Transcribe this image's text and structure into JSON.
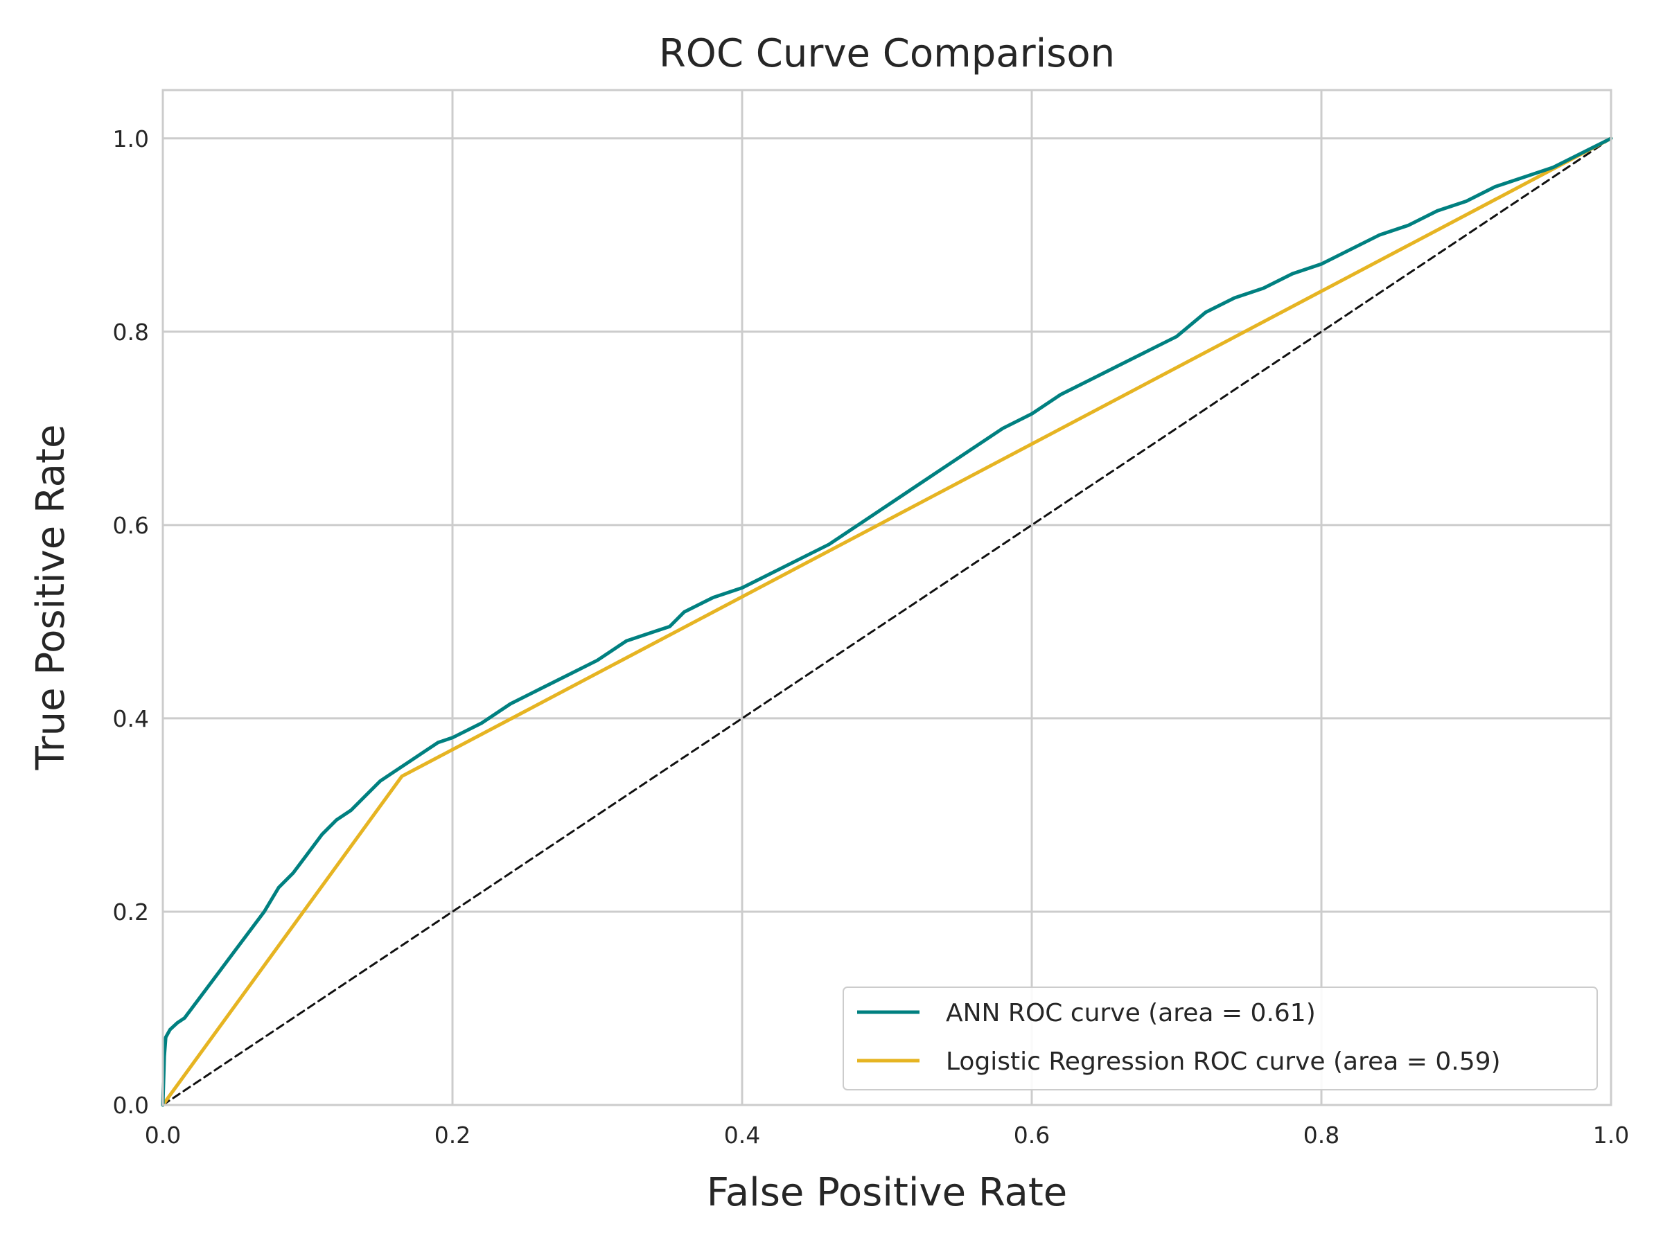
{
  "chart_data": {
    "type": "line",
    "title": "ROC Curve Comparison",
    "xlabel": "False Positive Rate",
    "ylabel": "True Positive Rate",
    "xlim": [
      0.0,
      1.0
    ],
    "ylim": [
      0.0,
      1.05
    ],
    "xticks": [
      "0.0",
      "0.2",
      "0.4",
      "0.6",
      "0.8",
      "1.0"
    ],
    "yticks": [
      "0.0",
      "0.2",
      "0.4",
      "0.6",
      "0.8",
      "1.0"
    ],
    "grid": true,
    "legend_position": "lower-right",
    "series": [
      {
        "name": "ANN ROC curve (area = 0.61)",
        "color": "#008080",
        "x": [
          0.0,
          0.001,
          0.002,
          0.005,
          0.01,
          0.015,
          0.02,
          0.03,
          0.04,
          0.05,
          0.06,
          0.07,
          0.08,
          0.09,
          0.1,
          0.11,
          0.12,
          0.13,
          0.14,
          0.15,
          0.16,
          0.17,
          0.18,
          0.19,
          0.2,
          0.22,
          0.24,
          0.26,
          0.28,
          0.3,
          0.32,
          0.34,
          0.35,
          0.36,
          0.38,
          0.4,
          0.42,
          0.44,
          0.46,
          0.48,
          0.5,
          0.52,
          0.54,
          0.56,
          0.58,
          0.6,
          0.62,
          0.64,
          0.66,
          0.68,
          0.7,
          0.72,
          0.74,
          0.76,
          0.78,
          0.8,
          0.82,
          0.84,
          0.86,
          0.88,
          0.9,
          0.92,
          0.94,
          0.96,
          0.98,
          1.0
        ],
        "y": [
          0.0,
          0.05,
          0.07,
          0.078,
          0.085,
          0.09,
          0.1,
          0.12,
          0.14,
          0.16,
          0.18,
          0.2,
          0.225,
          0.24,
          0.26,
          0.28,
          0.295,
          0.305,
          0.32,
          0.335,
          0.345,
          0.355,
          0.365,
          0.375,
          0.38,
          0.395,
          0.415,
          0.43,
          0.445,
          0.46,
          0.48,
          0.49,
          0.495,
          0.51,
          0.525,
          0.535,
          0.55,
          0.565,
          0.58,
          0.6,
          0.62,
          0.64,
          0.66,
          0.68,
          0.7,
          0.715,
          0.735,
          0.75,
          0.765,
          0.78,
          0.795,
          0.82,
          0.835,
          0.845,
          0.86,
          0.87,
          0.885,
          0.9,
          0.91,
          0.925,
          0.935,
          0.95,
          0.96,
          0.97,
          0.985,
          1.0
        ]
      },
      {
        "name": "Logistic Regression ROC curve (area = 0.59)",
        "color": "#e6b422",
        "x": [
          0.0,
          0.165,
          1.0
        ],
        "y": [
          0.0,
          0.34,
          1.0
        ]
      },
      {
        "name": "",
        "color": "#111111",
        "dashed": true,
        "x": [
          0.0,
          1.0
        ],
        "y": [
          0.0,
          1.0
        ]
      }
    ]
  }
}
